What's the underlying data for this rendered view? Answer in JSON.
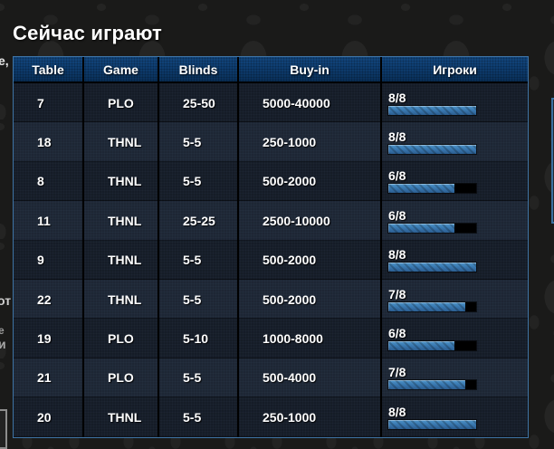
{
  "page": {
    "title": "Сейчас играют",
    "edge_fragments": {
      "top_left": "е,",
      "mid_left_1": "от",
      "mid_left_2": "е",
      "mid_left_3": "и"
    }
  },
  "table": {
    "headers": [
      "Table",
      "Game",
      "Blinds",
      "Buy-in",
      "Игроки"
    ],
    "rows": [
      {
        "table": "7",
        "game": "PLO",
        "blinds": "25-50",
        "buyin": "5000-40000",
        "players": "8/8",
        "seated": 8,
        "max": 8
      },
      {
        "table": "18",
        "game": "THNL",
        "blinds": "5-5",
        "buyin": "250-1000",
        "players": "8/8",
        "seated": 8,
        "max": 8
      },
      {
        "table": "8",
        "game": "THNL",
        "blinds": "5-5",
        "buyin": "500-2000",
        "players": "6/8",
        "seated": 6,
        "max": 8
      },
      {
        "table": "11",
        "game": "THNL",
        "blinds": "25-25",
        "buyin": "2500-10000",
        "players": "6/8",
        "seated": 6,
        "max": 8
      },
      {
        "table": "9",
        "game": "THNL",
        "blinds": "5-5",
        "buyin": "500-2000",
        "players": "8/8",
        "seated": 8,
        "max": 8
      },
      {
        "table": "22",
        "game": "THNL",
        "blinds": "5-5",
        "buyin": "500-2000",
        "players": "7/8",
        "seated": 7,
        "max": 8
      },
      {
        "table": "19",
        "game": "PLO",
        "blinds": "5-10",
        "buyin": "1000-8000",
        "players": "6/8",
        "seated": 6,
        "max": 8
      },
      {
        "table": "21",
        "game": "PLO",
        "blinds": "5-5",
        "buyin": "500-4000",
        "players": "7/8",
        "seated": 7,
        "max": 8
      },
      {
        "table": "20",
        "game": "THNL",
        "blinds": "5-5",
        "buyin": "250-1000",
        "players": "8/8",
        "seated": 8,
        "max": 8
      }
    ]
  },
  "colors": {
    "panel_border_blue": "#3f74a5",
    "header_bg": "#0d3a6b",
    "row_odd": "#151c27",
    "row_even": "#1d2634",
    "bar_fill_top": "#4f95ca",
    "bar_fill_bottom": "#2b5d90",
    "bar_empty": "#000000",
    "background": "#1a1a19"
  }
}
